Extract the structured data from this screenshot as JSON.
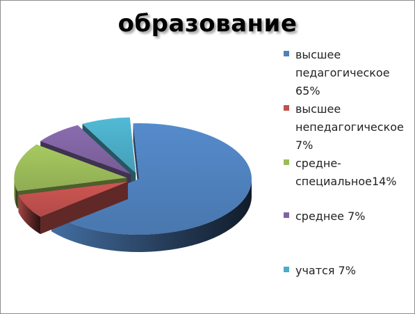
{
  "chart_data": {
    "type": "pie",
    "title": "образование",
    "legend_position": "right",
    "three_d": true,
    "slices": [
      {
        "name": "высшее педагогическое 65%",
        "value": 65,
        "color": "#4F81BD"
      },
      {
        "name": "высшее непедагогическое 7%",
        "value": 7,
        "color": "#C0504D"
      },
      {
        "name": "средне-специальное14%",
        "value": 14,
        "color": "#9BBB59"
      },
      {
        "name": "среднее 7%",
        "value": 7,
        "color": "#8064A2"
      },
      {
        "name": "учатся 7%",
        "value": 7,
        "color": "#4BACC6"
      }
    ],
    "legend": [
      {
        "text": "высшее\nпедагогическое\n65%",
        "color": "#4F81BD"
      },
      {
        "text": "высшее\nнепедагогическое\n7%",
        "color": "#C0504D"
      },
      {
        "text": "средне-\nспециальное14%",
        "color": "#9BBB59"
      },
      {
        "text": "среднее 7%",
        "color": "#8064A2"
      },
      {
        "text": "учатся 7%",
        "color": "#4BACC6"
      }
    ]
  }
}
